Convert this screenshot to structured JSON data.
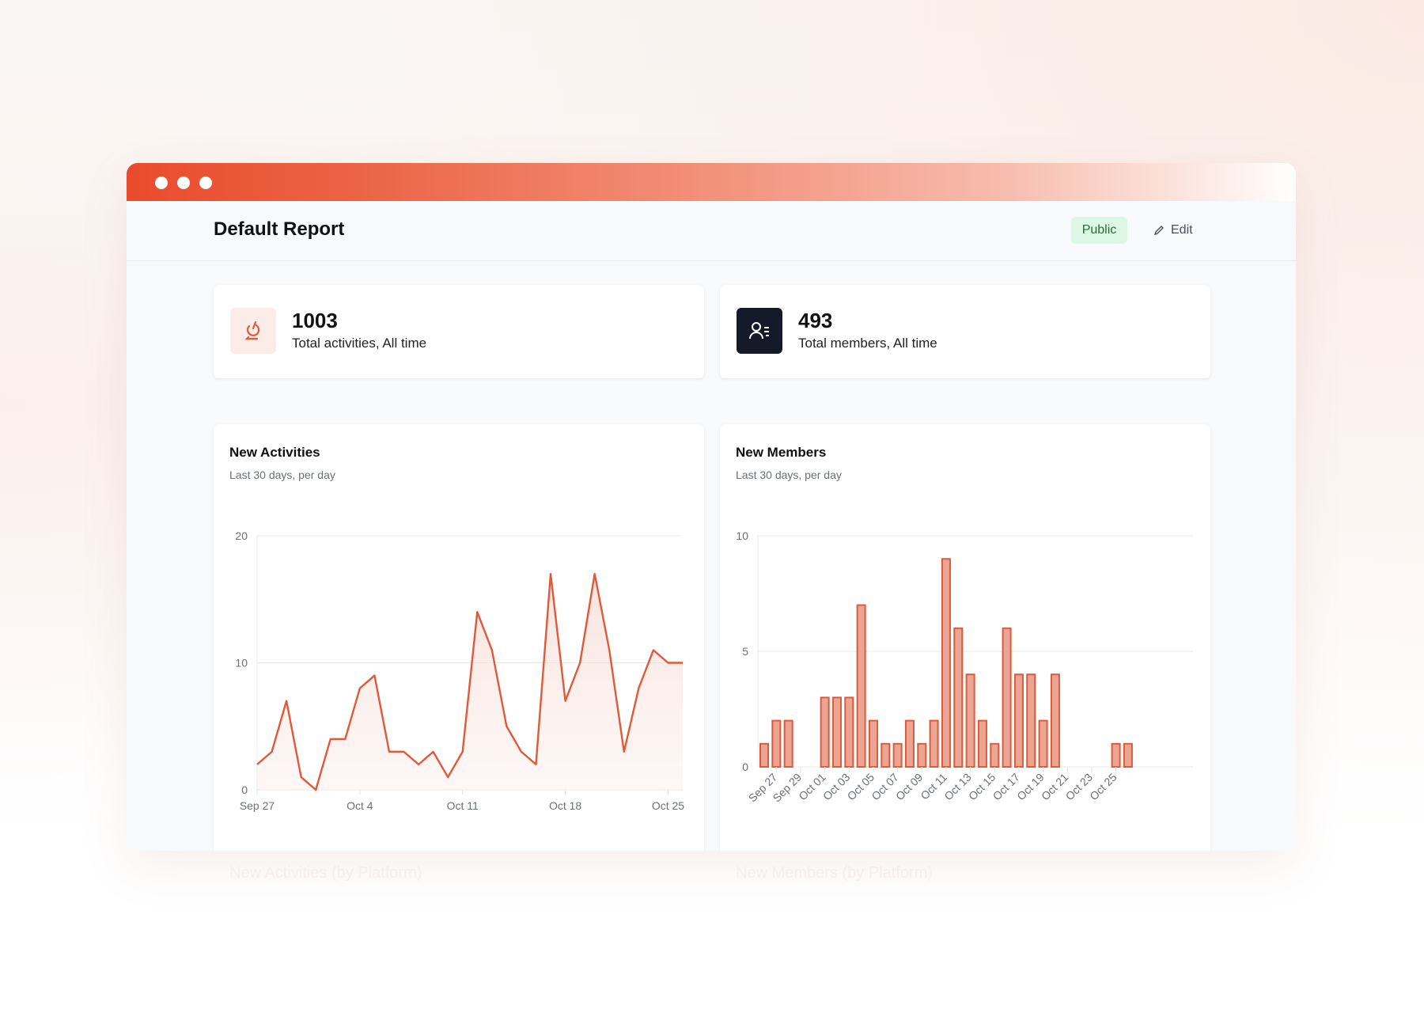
{
  "header": {
    "title": "Default Report",
    "visibility_badge": "Public",
    "edit_label": "Edit"
  },
  "stats": [
    {
      "value": "1003",
      "label": "Total activities, All time",
      "icon": "activity-icon",
      "icon_bg": "#fbece7",
      "icon_color": "#e05a3a"
    },
    {
      "value": "493",
      "label": "Total members, All time",
      "icon": "members-icon",
      "icon_bg": "#141a2a",
      "icon_color": "#ffffff"
    }
  ],
  "colors": {
    "accent": "#e05a3a",
    "bar_fill": "#eaa594",
    "public_bg": "#dcf7e3"
  },
  "chart_data": [
    {
      "type": "line",
      "title": "New Activities",
      "subtitle": "Last 30 days, per day",
      "x": [
        "Sep 27",
        "Sep 28",
        "Sep 29",
        "Sep 30",
        "Oct 1",
        "Oct 2",
        "Oct 3",
        "Oct 4",
        "Oct 5",
        "Oct 6",
        "Oct 7",
        "Oct 8",
        "Oct 9",
        "Oct 10",
        "Oct 11",
        "Oct 12",
        "Oct 13",
        "Oct 14",
        "Oct 15",
        "Oct 16",
        "Oct 17",
        "Oct 18",
        "Oct 19",
        "Oct 20",
        "Oct 21",
        "Oct 22",
        "Oct 23",
        "Oct 24",
        "Oct 25",
        "Oct 26"
      ],
      "values": [
        2,
        3,
        7,
        1,
        0,
        4,
        4,
        8,
        9,
        3,
        3,
        2,
        3,
        1,
        3,
        14,
        11,
        5,
        3,
        2,
        17,
        7,
        10,
        17,
        11,
        3,
        8,
        11,
        10,
        10
      ],
      "xticks": [
        "Sep 27",
        "Oct 4",
        "Oct 11",
        "Oct 18",
        "Oct 25"
      ],
      "yticks": [
        "0",
        "10",
        "20"
      ],
      "ylim": [
        0,
        20
      ],
      "grid": true
    },
    {
      "type": "bar",
      "title": "New Members",
      "subtitle": "Last 30 days, per day",
      "categories": [
        "Sep 26",
        "Sep 27",
        "Sep 28",
        "Sep 29",
        "Sep 30",
        "Oct 01",
        "Oct 02",
        "Oct 03",
        "Oct 04",
        "Oct 05",
        "Oct 06",
        "Oct 07",
        "Oct 08",
        "Oct 09",
        "Oct 10",
        "Oct 11",
        "Oct 12",
        "Oct 13",
        "Oct 14",
        "Oct 15",
        "Oct 16",
        "Oct 17",
        "Oct 18",
        "Oct 19",
        "Oct 20",
        "Oct 21",
        "Oct 22",
        "Oct 23",
        "Oct 24",
        "Oct 25",
        "Oct 26"
      ],
      "values": [
        1,
        2,
        2,
        0,
        0,
        3,
        3,
        3,
        7,
        2,
        1,
        1,
        2,
        1,
        2,
        9,
        6,
        4,
        2,
        1,
        6,
        4,
        4,
        2,
        4,
        0,
        0,
        0,
        0,
        1,
        1
      ],
      "xticks": [
        "Sep 27",
        "Sep 29",
        "Oct 01",
        "Oct 03",
        "Oct 05",
        "Oct 07",
        "Oct 09",
        "Oct 11",
        "Oct 13",
        "Oct 15",
        "Oct 17",
        "Oct 19",
        "Oct 21",
        "Oct 23",
        "Oct 25"
      ],
      "yticks": [
        "0",
        "5",
        "10"
      ],
      "ylim": [
        0,
        10
      ],
      "grid": true
    }
  ],
  "below_fold": [
    "New Activities (by Platform)",
    "New Members (by Platform)"
  ]
}
